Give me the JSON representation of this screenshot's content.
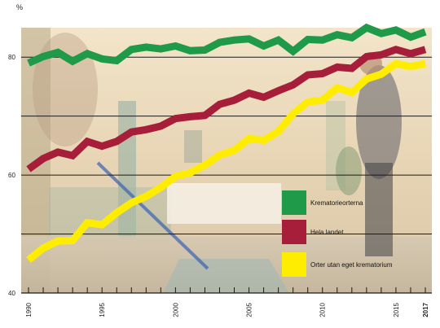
{
  "chart_data": {
    "type": "line",
    "ylabel": "%",
    "ylim": [
      40,
      85
    ],
    "y_ticks": [
      40,
      60,
      80
    ],
    "xlim": [
      1990,
      2017
    ],
    "x_ticks": [
      {
        "value": 1990,
        "label": "1990"
      },
      {
        "value": 1995,
        "label": "1995"
      },
      {
        "value": 2000,
        "label": "2000"
      },
      {
        "value": 2005,
        "label": "2005"
      },
      {
        "value": 2010,
        "label": "2010"
      },
      {
        "value": 2015,
        "label": "2015"
      },
      {
        "value": 2017,
        "label": "2017"
      }
    ],
    "grid": "horizontal",
    "legend_position": "right",
    "x": [
      1990,
      1991,
      1992,
      1993,
      1994,
      1995,
      1996,
      1997,
      1998,
      1999,
      2000,
      2001,
      2002,
      2003,
      2004,
      2005,
      2006,
      2007,
      2008,
      2009,
      2010,
      2011,
      2012,
      2013,
      2014,
      2015,
      2016,
      2017
    ],
    "series": [
      {
        "name": "Krematorieorterna",
        "color": "#1f9a48",
        "values": [
          79.0,
          80.1,
          80.8,
          79.3,
          80.6,
          79.7,
          79.4,
          81.3,
          81.7,
          81.4,
          81.9,
          81.1,
          81.2,
          82.5,
          82.9,
          83.1,
          81.9,
          82.9,
          81.0,
          83.0,
          82.9,
          83.8,
          83.3,
          85.0,
          84.0,
          84.6,
          83.4,
          84.3
        ]
      },
      {
        "name": "Hela landet",
        "color": "#a61e3a",
        "values": [
          61.0,
          62.8,
          63.9,
          63.3,
          65.7,
          64.9,
          65.7,
          67.3,
          67.7,
          68.3,
          69.6,
          69.9,
          70.1,
          72.0,
          72.7,
          73.9,
          73.2,
          74.3,
          75.3,
          77.0,
          77.2,
          78.3,
          78.1,
          80.1,
          80.4,
          81.3,
          80.6,
          81.3
        ]
      },
      {
        "name": "Orter utan eget krematorium",
        "color": "#ffed00",
        "values": [
          45.6,
          47.6,
          48.8,
          48.9,
          51.9,
          51.6,
          53.6,
          55.3,
          56.4,
          57.9,
          59.8,
          60.4,
          61.7,
          63.4,
          64.2,
          66.2,
          65.9,
          67.4,
          70.4,
          72.4,
          72.7,
          74.8,
          74.0,
          76.3,
          77.1,
          78.9,
          78.4,
          78.9
        ]
      }
    ]
  }
}
